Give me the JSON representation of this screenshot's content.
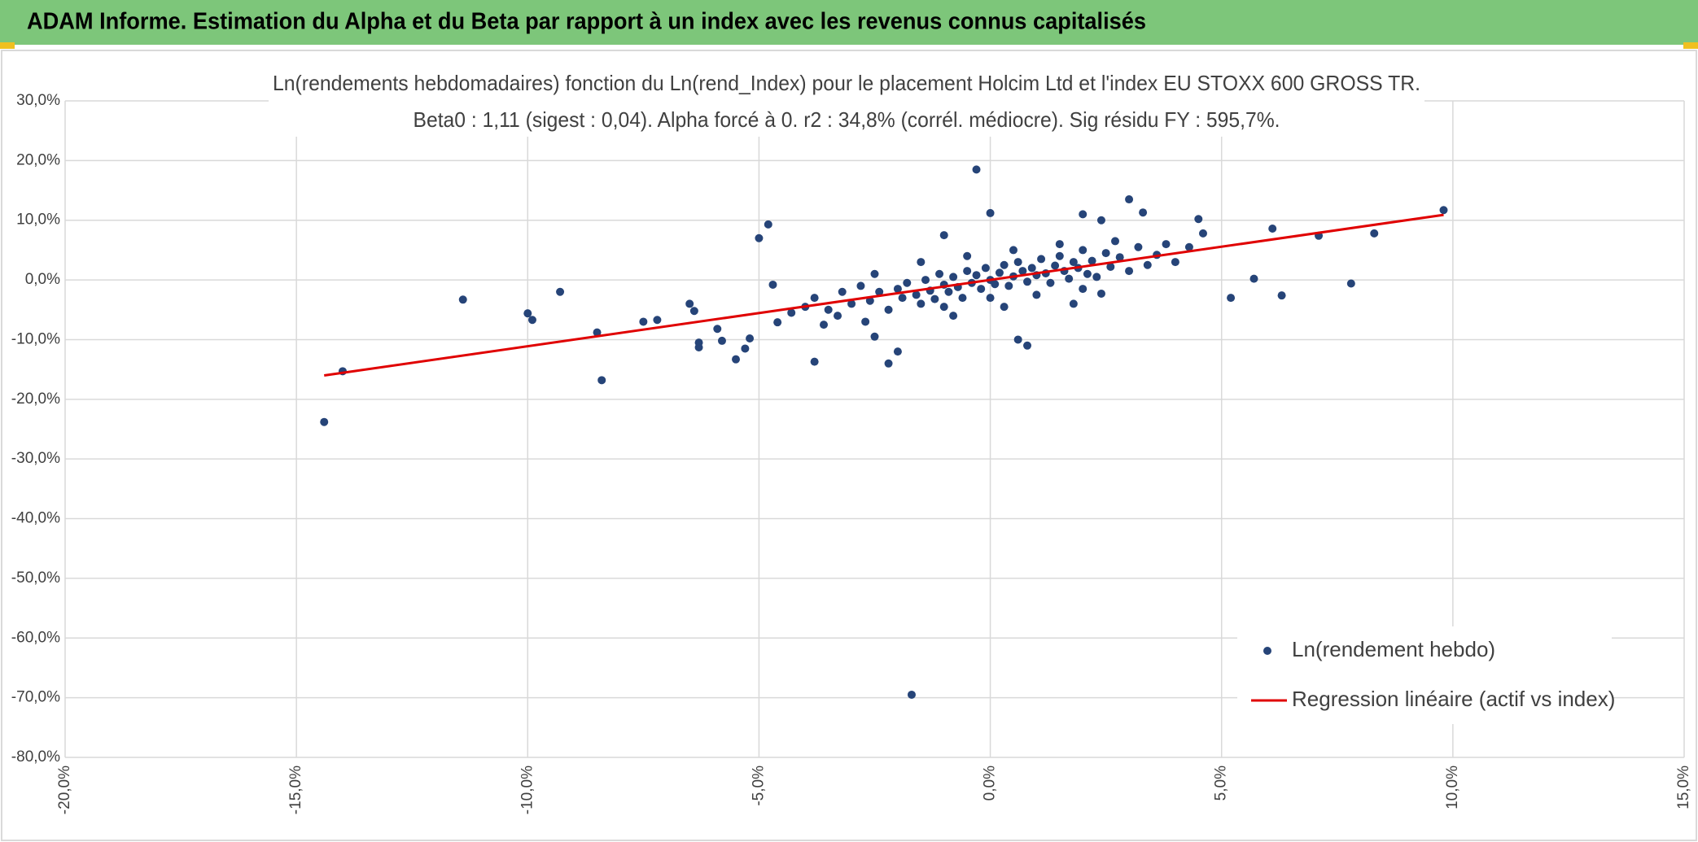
{
  "header": {
    "title": "ADAM Informe. Estimation du Alpha et du Beta par rapport à un index avec les revenus connus capitalisés"
  },
  "chart_data": {
    "type": "scatter",
    "title": "Ln(rendements hebdomadaires) fonction du Ln(rend_Index) pour le placement Holcim Ltd et l'index EU STOXX 600 GROSS TR.",
    "subtitle": "Beta0 : 1,11 (sigest : 0,04). Alpha forcé à 0. r2 : 34,8% (corrél. médiocre). Sig résidu FY : 595,7%.",
    "xlim": [
      -20,
      15
    ],
    "ylim": [
      -80,
      30
    ],
    "xticks": [
      {
        "value": -20,
        "label": "-20,0%"
      },
      {
        "value": -15,
        "label": "-15,0%"
      },
      {
        "value": -10,
        "label": "-10,0%"
      },
      {
        "value": -5,
        "label": "-5,0%"
      },
      {
        "value": 0,
        "label": "0,0%"
      },
      {
        "value": 5,
        "label": "5,0%"
      },
      {
        "value": 10,
        "label": "10,0%"
      },
      {
        "value": 15,
        "label": "15,0%"
      }
    ],
    "yticks": [
      {
        "value": 30,
        "label": "30,0%"
      },
      {
        "value": 20,
        "label": "20,0%"
      },
      {
        "value": 10,
        "label": "10,0%"
      },
      {
        "value": 0,
        "label": "0,0%"
      },
      {
        "value": -10,
        "label": "-10,0%"
      },
      {
        "value": -20,
        "label": "-20,0%"
      },
      {
        "value": -30,
        "label": "-30,0%"
      },
      {
        "value": -40,
        "label": "-40,0%"
      },
      {
        "value": -50,
        "label": "-50,0%"
      },
      {
        "value": -60,
        "label": "-60,0%"
      },
      {
        "value": -70,
        "label": "-70,0%"
      },
      {
        "value": -80,
        "label": "-80,0%"
      }
    ],
    "grid": true,
    "series": [
      {
        "name": "Ln(rendement hebdo)",
        "color": "#264478",
        "mode": "markers",
        "x": [
          -14.4,
          -14,
          -11.4,
          -10,
          -9.9,
          -9.3,
          -8.4,
          -8.5,
          -7.5,
          -7.2,
          -6.5,
          -6.4,
          -6.3,
          -6.3,
          -5.9,
          -5.8,
          -5.5,
          -5.3,
          -5.2,
          -5,
          -4.8,
          -4.7,
          -4.6,
          -3.8,
          -2.5,
          -2.2,
          -2,
          -1.7,
          -1,
          -0.3,
          0,
          0.6,
          0.8,
          2,
          2.4,
          3,
          3.3,
          4.5,
          4.6,
          5.2,
          5.7,
          6.1,
          6.3,
          7.1,
          7.8,
          8.3,
          9.8,
          -4,
          -3.8,
          -3.5,
          -3.2,
          -3,
          -2.8,
          -2.6,
          -2.4,
          -2.2,
          -2,
          -1.9,
          -1.8,
          -1.6,
          -1.5,
          -1.4,
          -1.3,
          -1.2,
          -1.1,
          -1,
          -0.9,
          -0.8,
          -0.7,
          -0.6,
          -0.5,
          -0.4,
          -0.3,
          -0.2,
          -0.1,
          0,
          0.1,
          0.2,
          0.3,
          0.4,
          0.5,
          0.6,
          0.7,
          0.8,
          0.9,
          1,
          1.1,
          1.2,
          1.3,
          1.4,
          1.5,
          1.6,
          1.7,
          1.8,
          1.9,
          2,
          2.1,
          2.2,
          2.3,
          2.5,
          2.6,
          2.8,
          3,
          3.2,
          3.4,
          3.6,
          3.8,
          4,
          4.3,
          2.7,
          1.5,
          0.5,
          -0.5,
          -1.5,
          -2.5,
          -3.3,
          -4.3,
          -1,
          0,
          1,
          2,
          0.3,
          -0.8,
          1.8,
          2.4,
          -2.7,
          -3.6
        ],
        "values": [
          -23.8,
          -15.3,
          -3.3,
          -5.6,
          -6.7,
          -2,
          -16.8,
          -8.8,
          -7,
          -6.7,
          -4,
          -5.2,
          -10.5,
          -11.3,
          -8.2,
          -10.2,
          -13.3,
          -11.5,
          -9.8,
          7,
          9.3,
          -0.8,
          -7.1,
          -13.7,
          -9.5,
          -14,
          -12,
          -69.5,
          7.5,
          18.5,
          11.2,
          -10,
          -11,
          11,
          10,
          13.5,
          11.3,
          10.2,
          7.8,
          -3,
          0.2,
          8.6,
          -2.6,
          7.4,
          -0.6,
          7.8,
          11.7,
          -4.5,
          -3,
          -5,
          -2,
          -4,
          -1,
          -3.5,
          -2,
          -5,
          -1.5,
          -3,
          -0.5,
          -2.5,
          -4,
          0,
          -1.8,
          -3.2,
          1,
          -0.8,
          -2,
          0.5,
          -1.2,
          -3,
          1.5,
          -0.5,
          0.8,
          -1.5,
          2,
          0,
          -0.7,
          1.2,
          2.5,
          -1,
          0.6,
          3,
          1.5,
          -0.3,
          2,
          0.8,
          3.5,
          1.1,
          -0.5,
          2.4,
          4,
          1.5,
          0.2,
          3,
          2,
          5,
          1,
          3.2,
          0.5,
          4.5,
          2.2,
          3.8,
          1.5,
          5.5,
          2.5,
          4.2,
          6,
          3,
          5.5,
          6.5,
          6,
          5,
          4,
          3,
          1,
          -6,
          -5.5,
          -4.5,
          -3,
          -2.5,
          -1.5,
          -4.5,
          -6,
          -4,
          -2.3,
          -7,
          -7.5
        ]
      },
      {
        "name": "Regression linéaire (actif vs index)",
        "color": "#e00000",
        "mode": "line",
        "x": [
          -14.4,
          9.8
        ],
        "values": [
          -16,
          10.9
        ]
      }
    ]
  }
}
